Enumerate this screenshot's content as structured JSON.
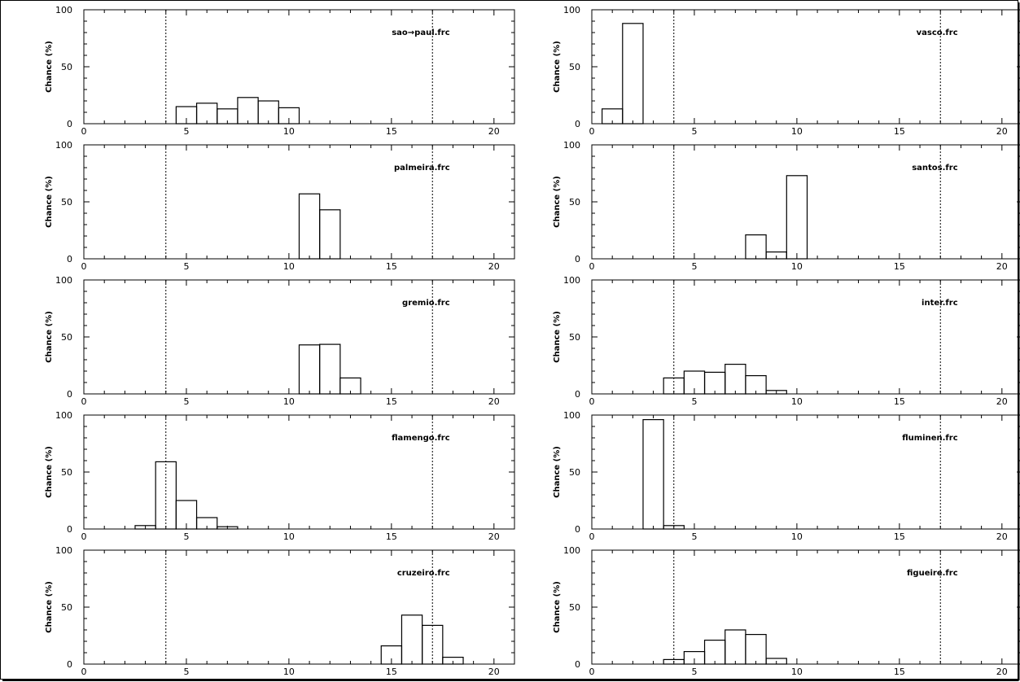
{
  "chart_data": [
    {
      "type": "bar",
      "title": "sao→paul.frc",
      "ylabel": "Chance (%)",
      "xlabel": "",
      "xlim": [
        0,
        21
      ],
      "ylim": [
        0,
        100
      ],
      "xticks": [
        0,
        5,
        10,
        15,
        20
      ],
      "yticks": [
        0,
        50,
        100
      ],
      "vlines": [
        4,
        17
      ],
      "bin_starts": [
        4.5,
        5.5,
        6.5,
        7.5,
        8.5,
        9.5
      ],
      "values": [
        15,
        18,
        13,
        23,
        20,
        14
      ]
    },
    {
      "type": "bar",
      "title": "vasco.frc",
      "ylabel": "Chance (%)",
      "xlabel": "",
      "xlim": [
        0,
        21
      ],
      "ylim": [
        0,
        100
      ],
      "xticks": [
        0,
        5,
        10,
        15,
        20
      ],
      "yticks": [
        0,
        50,
        100
      ],
      "vlines": [
        4,
        17
      ],
      "bin_starts": [
        0.5,
        1.5
      ],
      "values": [
        13,
        88
      ]
    },
    {
      "type": "bar",
      "title": "palmeira.frc",
      "ylabel": "Chance (%)",
      "xlabel": "",
      "xlim": [
        0,
        21
      ],
      "ylim": [
        0,
        100
      ],
      "xticks": [
        0,
        5,
        10,
        15,
        20
      ],
      "yticks": [
        0,
        50,
        100
      ],
      "vlines": [
        4,
        17
      ],
      "bin_starts": [
        10.5,
        11.5
      ],
      "values": [
        57,
        43
      ]
    },
    {
      "type": "bar",
      "title": "santos.frc",
      "ylabel": "Chance (%)",
      "xlabel": "",
      "xlim": [
        0,
        21
      ],
      "ylim": [
        0,
        100
      ],
      "xticks": [
        0,
        5,
        10,
        15,
        20
      ],
      "yticks": [
        0,
        50,
        100
      ],
      "vlines": [
        4,
        17
      ],
      "bin_starts": [
        7.5,
        8.5,
        9.5
      ],
      "values": [
        21,
        6,
        73
      ]
    },
    {
      "type": "bar",
      "title": "gremio.frc",
      "ylabel": "Chance (%)",
      "xlabel": "",
      "xlim": [
        0,
        21
      ],
      "ylim": [
        0,
        100
      ],
      "xticks": [
        0,
        5,
        10,
        15,
        20
      ],
      "yticks": [
        0,
        50,
        100
      ],
      "vlines": [
        4,
        17
      ],
      "bin_starts": [
        10.5,
        11.5,
        12.5
      ],
      "values": [
        43,
        43.5,
        14
      ]
    },
    {
      "type": "bar",
      "title": "inter.frc",
      "ylabel": "Chance (%)",
      "xlabel": "",
      "xlim": [
        0,
        21
      ],
      "ylim": [
        0,
        100
      ],
      "xticks": [
        0,
        5,
        10,
        15,
        20
      ],
      "yticks": [
        0,
        50,
        100
      ],
      "vlines": [
        4,
        17
      ],
      "bin_starts": [
        3.5,
        4.5,
        5.5,
        6.5,
        7.5,
        8.5
      ],
      "values": [
        14,
        20,
        19,
        26,
        16,
        3
      ]
    },
    {
      "type": "bar",
      "title": "flamengo.frc",
      "ylabel": "Chance (%)",
      "xlabel": "",
      "xlim": [
        0,
        21
      ],
      "ylim": [
        0,
        100
      ],
      "xticks": [
        0,
        5,
        10,
        15,
        20
      ],
      "yticks": [
        0,
        50,
        100
      ],
      "vlines": [
        4,
        17
      ],
      "bin_starts": [
        2.5,
        3.5,
        4.5,
        5.5,
        6.5
      ],
      "values": [
        3,
        59,
        25,
        10,
        2
      ]
    },
    {
      "type": "bar",
      "title": "fluminen.frc",
      "ylabel": "Chance (%)",
      "xlabel": "",
      "xlim": [
        0,
        21
      ],
      "ylim": [
        0,
        100
      ],
      "xticks": [
        0,
        5,
        10,
        15,
        20
      ],
      "yticks": [
        0,
        50,
        100
      ],
      "vlines": [
        4,
        17
      ],
      "bin_starts": [
        2.5,
        3.5
      ],
      "values": [
        96,
        3
      ]
    },
    {
      "type": "bar",
      "title": "cruzeiro.frc",
      "ylabel": "Chance (%)",
      "xlabel": "",
      "xlim": [
        0,
        21
      ],
      "ylim": [
        0,
        100
      ],
      "xticks": [
        0,
        5,
        10,
        15,
        20
      ],
      "yticks": [
        0,
        50,
        100
      ],
      "vlines": [
        4,
        17
      ],
      "bin_starts": [
        14.5,
        15.5,
        16.5,
        17.5
      ],
      "values": [
        16,
        43,
        34,
        6
      ]
    },
    {
      "type": "bar",
      "title": "figueire.frc",
      "ylabel": "Chance (%)",
      "xlabel": "",
      "xlim": [
        0,
        21
      ],
      "ylim": [
        0,
        100
      ],
      "xticks": [
        0,
        5,
        10,
        15,
        20
      ],
      "yticks": [
        0,
        50,
        100
      ],
      "vlines": [
        4,
        17
      ],
      "bin_starts": [
        3.5,
        4.5,
        5.5,
        6.5,
        7.5,
        8.5
      ],
      "values": [
        4,
        11,
        21,
        30,
        26,
        5
      ]
    }
  ]
}
